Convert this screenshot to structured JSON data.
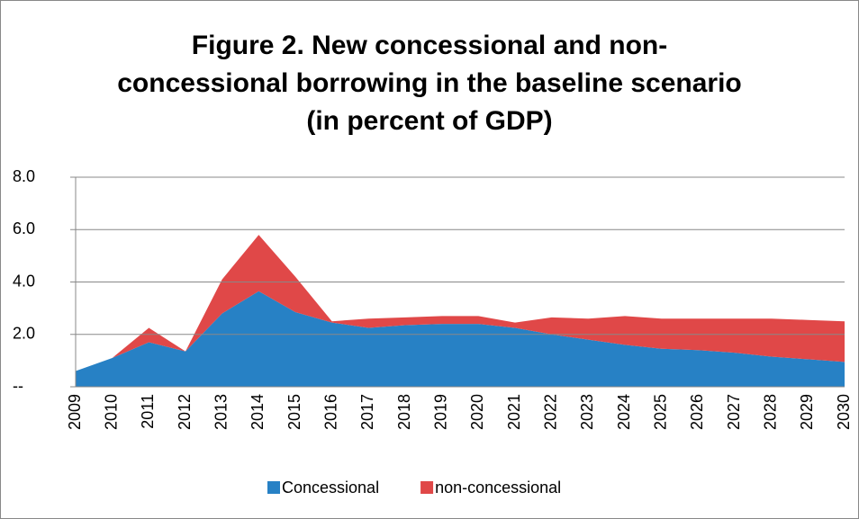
{
  "chart_data": {
    "type": "stacked-area",
    "title": [
      "Figure 2. New concessional and non-",
      "concessional borrowing in the baseline scenario",
      "(in percent of GDP)"
    ],
    "categories": [
      "2009",
      "2010",
      "2011",
      "2012",
      "2013",
      "2014",
      "2015",
      "2016",
      "2017",
      "2018",
      "2019",
      "2020",
      "2021",
      "2022",
      "2023",
      "2024",
      "2025",
      "2026",
      "2027",
      "2028",
      "2029",
      "2030"
    ],
    "series": [
      {
        "name": "Concessional",
        "color": "#2781c5",
        "values": [
          0.6,
          1.1,
          1.7,
          1.35,
          2.8,
          3.65,
          2.85,
          2.45,
          2.25,
          2.35,
          2.4,
          2.4,
          2.25,
          2.0,
          1.8,
          1.6,
          1.45,
          1.4,
          1.3,
          1.15,
          1.05,
          0.95
        ]
      },
      {
        "name": "non-concessional",
        "color": "#e04848",
        "values": [
          0,
          0,
          0.55,
          0,
          1.3,
          2.15,
          1.35,
          0.05,
          0.35,
          0.3,
          0.3,
          0.3,
          0.2,
          0.65,
          0.8,
          1.1,
          1.15,
          1.2,
          1.3,
          1.45,
          1.5,
          1.55
        ]
      }
    ],
    "ylim": [
      0,
      8
    ],
    "yticks": [
      {
        "value": 0,
        "label": "--"
      },
      {
        "value": 2,
        "label": "2.0"
      },
      {
        "value": 4,
        "label": "4.0"
      },
      {
        "value": 6,
        "label": "6.0"
      },
      {
        "value": 8,
        "label": "8.0"
      }
    ],
    "grid": true,
    "legend": "bottom"
  }
}
